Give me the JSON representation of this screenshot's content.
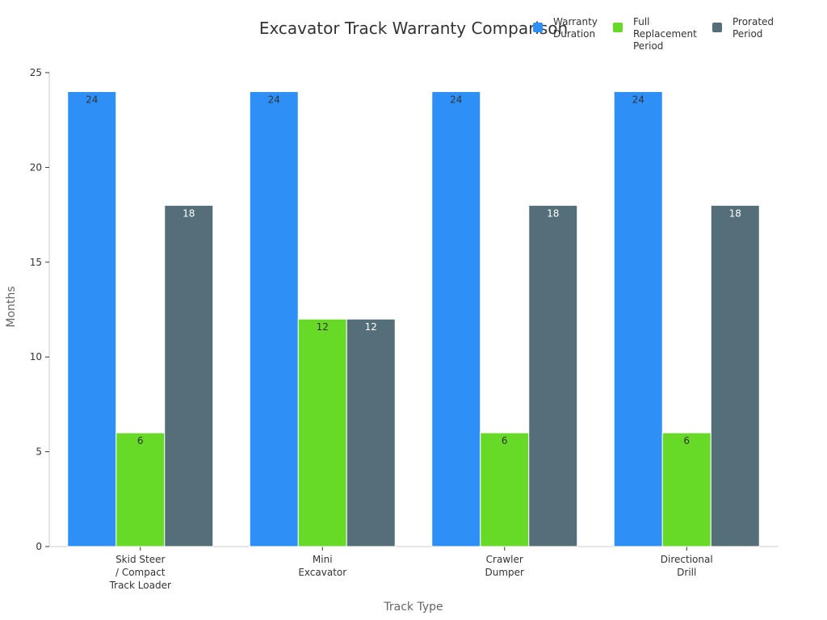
{
  "chart_data": {
    "type": "bar",
    "title": "Excavator Track Warranty Comparison",
    "xlabel": "Track Type",
    "ylabel": "Months",
    "ylim": [
      0,
      25
    ],
    "yticks": [
      0,
      5,
      10,
      15,
      20,
      25
    ],
    "grid": false,
    "legend_position": "top-right",
    "categories": [
      [
        "Skid Steer",
        "/ Compact",
        "Track Loader"
      ],
      [
        "Mini",
        "Excavator"
      ],
      [
        "Crawler",
        "Dumper"
      ],
      [
        "Directional",
        "Drill"
      ]
    ],
    "series": [
      {
        "name": [
          "Warranty",
          "Duration"
        ],
        "color": "#2e90f7",
        "label_color": "#333333",
        "values": [
          24,
          24,
          24,
          24
        ]
      },
      {
        "name": [
          "Full",
          "Replacement",
          "Period"
        ],
        "color": "#66da26",
        "label_color": "#333333",
        "values": [
          6,
          12,
          6,
          6
        ]
      },
      {
        "name": [
          "Prorated",
          "Period"
        ],
        "color": "#546e7a",
        "label_color": "#ffffff",
        "values": [
          18,
          12,
          18,
          18
        ]
      }
    ]
  }
}
